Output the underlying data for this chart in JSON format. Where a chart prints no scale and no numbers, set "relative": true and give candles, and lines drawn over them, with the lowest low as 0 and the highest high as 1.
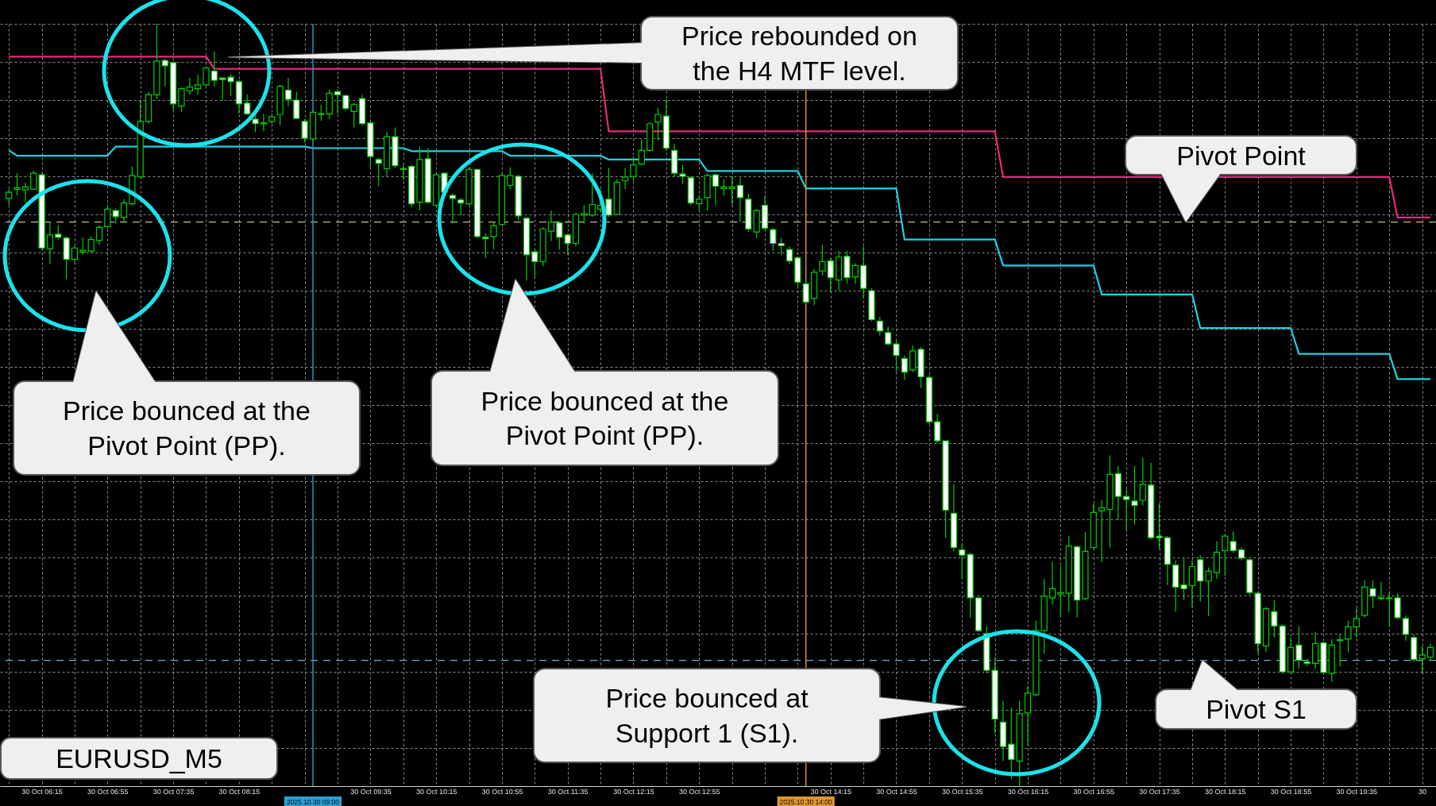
{
  "chart_data": {
    "type": "candlestick",
    "title": "EURUSD_M5",
    "relative": true,
    "grid": true,
    "xlim": [
      "2025-10-30T05:52",
      "2025-10-30T20:21"
    ],
    "xticks": [
      {
        "value": "2025-10-30T06:15",
        "label": "30 Oct 06:15"
      },
      {
        "value": "2025-10-30T06:55",
        "label": "30 Oct 06:55"
      },
      {
        "value": "2025-10-30T07:35",
        "label": "30 Oct 07:35"
      },
      {
        "value": "2025-10-30T08:15",
        "label": "30 Oct 08:15"
      },
      {
        "value": "2025-10-30T08:55",
        "label": null
      },
      {
        "value": "2025-10-30T09:35",
        "label": "30 Oct 09:35"
      },
      {
        "value": "2025-10-30T10:15",
        "label": "30 Oct 10:15"
      },
      {
        "value": "2025-10-30T10:55",
        "label": "30 Oct 10:55"
      },
      {
        "value": "2025-10-30T11:35",
        "label": "30 Oct 11:35"
      },
      {
        "value": "2025-10-30T12:15",
        "label": "30 Oct 12:15"
      },
      {
        "value": "2025-10-30T12:55",
        "label": "30 Oct 12:55"
      },
      {
        "value": "2025-10-30T13:35",
        "label": null
      },
      {
        "value": "2025-10-30T14:15",
        "label": "30 Oct 14:15"
      },
      {
        "value": "2025-10-30T14:55",
        "label": "30 Oct 14:55"
      },
      {
        "value": "2025-10-30T15:35",
        "label": "30 Oct 15:35"
      },
      {
        "value": "2025-10-30T16:15",
        "label": "30 Oct 16:15"
      },
      {
        "value": "2025-10-30T16:55",
        "label": "30 Oct 16:55"
      },
      {
        "value": "2025-10-30T17:35",
        "label": "30 Oct 17:35"
      },
      {
        "value": "2025-10-30T18:15",
        "label": "30 Oct 18:15"
      },
      {
        "value": "2025-10-30T18:55",
        "label": "30 Oct 18:55"
      },
      {
        "value": "2025-10-30T19:35",
        "label": "30 Oct 19:35"
      },
      {
        "value": "2025-10-30T20:15",
        "label": "30"
      }
    ],
    "series": [
      {
        "type": "candlestick",
        "color": "#00d000",
        "x": [
          "2025-10-30T05:55",
          "2025-10-30T06:00",
          "2025-10-30T06:05",
          "2025-10-30T06:10",
          "2025-10-30T06:15",
          "2025-10-30T06:20",
          "2025-10-30T06:25",
          "2025-10-30T06:30",
          "2025-10-30T06:35",
          "2025-10-30T06:40",
          "2025-10-30T06:45",
          "2025-10-30T06:50",
          "2025-10-30T06:55",
          "2025-10-30T07:00",
          "2025-10-30T07:05",
          "2025-10-30T07:10",
          "2025-10-30T07:15",
          "2025-10-30T07:20",
          "2025-10-30T07:25",
          "2025-10-30T07:30",
          "2025-10-30T07:35",
          "2025-10-30T07:40",
          "2025-10-30T07:45",
          "2025-10-30T07:50",
          "2025-10-30T07:55",
          "2025-10-30T08:00",
          "2025-10-30T08:05",
          "2025-10-30T08:10",
          "2025-10-30T08:15",
          "2025-10-30T08:20",
          "2025-10-30T08:25",
          "2025-10-30T08:30",
          "2025-10-30T08:35",
          "2025-10-30T08:40",
          "2025-10-30T08:45",
          "2025-10-30T08:50",
          "2025-10-30T08:55",
          "2025-10-30T09:00",
          "2025-10-30T09:05",
          "2025-10-30T09:10",
          "2025-10-30T09:15",
          "2025-10-30T09:20",
          "2025-10-30T09:25",
          "2025-10-30T09:30",
          "2025-10-30T09:35",
          "2025-10-30T09:40",
          "2025-10-30T09:45",
          "2025-10-30T09:50",
          "2025-10-30T09:55",
          "2025-10-30T10:00",
          "2025-10-30T10:05",
          "2025-10-30T10:10",
          "2025-10-30T10:15",
          "2025-10-30T10:20",
          "2025-10-30T10:25",
          "2025-10-30T10:30",
          "2025-10-30T10:35",
          "2025-10-30T10:40",
          "2025-10-30T10:45",
          "2025-10-30T10:50",
          "2025-10-30T10:55",
          "2025-10-30T11:00",
          "2025-10-30T11:05",
          "2025-10-30T11:10",
          "2025-10-30T11:15",
          "2025-10-30T11:20",
          "2025-10-30T11:25",
          "2025-10-30T11:30",
          "2025-10-30T11:35",
          "2025-10-30T11:40",
          "2025-10-30T11:45",
          "2025-10-30T11:50",
          "2025-10-30T11:55",
          "2025-10-30T12:00",
          "2025-10-30T12:05",
          "2025-10-30T12:10",
          "2025-10-30T12:15",
          "2025-10-30T12:20",
          "2025-10-30T12:25",
          "2025-10-30T12:30",
          "2025-10-30T12:35",
          "2025-10-30T12:40",
          "2025-10-30T12:45",
          "2025-10-30T12:50",
          "2025-10-30T12:55",
          "2025-10-30T13:00",
          "2025-10-30T13:05",
          "2025-10-30T13:10",
          "2025-10-30T13:15",
          "2025-10-30T13:20",
          "2025-10-30T13:25",
          "2025-10-30T13:30",
          "2025-10-30T13:35",
          "2025-10-30T13:40",
          "2025-10-30T13:45",
          "2025-10-30T13:50",
          "2025-10-30T13:55",
          "2025-10-30T14:00",
          "2025-10-30T14:05",
          "2025-10-30T14:10",
          "2025-10-30T14:15",
          "2025-10-30T14:20",
          "2025-10-30T14:25",
          "2025-10-30T14:30",
          "2025-10-30T14:35",
          "2025-10-30T14:40",
          "2025-10-30T14:45",
          "2025-10-30T14:50",
          "2025-10-30T14:55",
          "2025-10-30T15:00",
          "2025-10-30T15:05",
          "2025-10-30T15:10",
          "2025-10-30T15:15",
          "2025-10-30T15:20",
          "2025-10-30T15:25",
          "2025-10-30T15:30",
          "2025-10-30T15:35",
          "2025-10-30T15:40",
          "2025-10-30T15:45",
          "2025-10-30T15:50",
          "2025-10-30T15:55",
          "2025-10-30T16:00",
          "2025-10-30T16:05",
          "2025-10-30T16:10",
          "2025-10-30T16:15",
          "2025-10-30T16:20",
          "2025-10-30T16:25",
          "2025-10-30T16:30",
          "2025-10-30T16:35",
          "2025-10-30T16:40",
          "2025-10-30T16:45",
          "2025-10-30T16:50",
          "2025-10-30T16:55",
          "2025-10-30T17:00",
          "2025-10-30T17:05",
          "2025-10-30T17:10",
          "2025-10-30T17:15",
          "2025-10-30T17:20",
          "2025-10-30T17:25",
          "2025-10-30T17:30",
          "2025-10-30T17:35",
          "2025-10-30T17:40",
          "2025-10-30T17:45",
          "2025-10-30T17:50",
          "2025-10-30T17:55",
          "2025-10-30T18:00",
          "2025-10-30T18:05",
          "2025-10-30T18:10",
          "2025-10-30T18:15",
          "2025-10-30T18:20",
          "2025-10-30T18:25",
          "2025-10-30T18:30",
          "2025-10-30T18:35",
          "2025-10-30T18:40",
          "2025-10-30T18:45",
          "2025-10-30T18:50",
          "2025-10-30T18:55",
          "2025-10-30T19:00",
          "2025-10-30T19:05",
          "2025-10-30T19:10",
          "2025-10-30T19:15",
          "2025-10-30T19:20",
          "2025-10-30T19:25",
          "2025-10-30T19:30",
          "2025-10-30T19:35",
          "2025-10-30T19:40",
          "2025-10-30T19:45",
          "2025-10-30T19:50",
          "2025-10-30T19:55",
          "2025-10-30T20:00",
          "2025-10-30T20:05",
          "2025-10-30T20:10",
          "2025-10-30T20:15",
          "2025-10-30T20:20"
        ],
        "colors": [
          "#000000",
          "#000000",
          "#000000",
          "#000000",
          "#ffffff",
          "#000000",
          "#ffffff",
          "#ffffff",
          "#000000",
          "#000000",
          "#000000",
          "#000000",
          "#000000",
          "#ffffff",
          "#000000",
          "#000000",
          "#000000",
          "#000000",
          "#000000",
          "#ffffff",
          "#ffffff",
          "#000000",
          "#000000",
          "#000000",
          "#000000",
          "#ffffff",
          "#ffffff",
          "#ffffff",
          "#ffffff",
          "#ffffff",
          "#ffffff",
          "#ffffff",
          "#000000",
          "#000000",
          "#ffffff",
          "#ffffff",
          "#ffffff",
          "#000000",
          "#000000",
          "#000000",
          "#ffffff",
          "#ffffff",
          "#000000",
          "#ffffff",
          "#ffffff",
          "#ffffff",
          "#000000",
          "#ffffff",
          "#ffffff",
          "#ffffff",
          "#000000",
          "#ffffff",
          "#000000",
          "#ffffff",
          "#ffffff",
          "#ffffff",
          "#000000",
          "#ffffff",
          "#ffffff",
          "#000000",
          "#000000",
          "#000000",
          "#ffffff",
          "#ffffff",
          "#ffffff",
          "#000000",
          "#000000",
          "#ffffff",
          "#ffffff",
          "#000000",
          "#000000",
          "#000000",
          "#000000",
          "#ffffff",
          "#000000",
          "#000000",
          "#000000",
          "#000000",
          "#000000",
          "#000000",
          "#ffffff",
          "#ffffff",
          "#ffffff",
          "#ffffff",
          "#000000",
          "#000000",
          "#ffffff",
          "#000000",
          "#000000",
          "#ffffff",
          "#ffffff",
          "#000000",
          "#ffffff",
          "#ffffff",
          "#ffffff",
          "#ffffff",
          "#ffffff",
          "#ffffff",
          "#000000",
          "#000000",
          "#ffffff",
          "#000000",
          "#ffffff",
          "#000000",
          "#ffffff",
          "#ffffff",
          "#ffffff",
          "#ffffff",
          "#ffffff",
          "#ffffff",
          "#000000",
          "#ffffff",
          "#ffffff",
          "#ffffff",
          "#ffffff",
          "#ffffff",
          "#ffffff",
          "#ffffff",
          "#ffffff",
          "#ffffff",
          "#ffffff",
          "#ffffff",
          "#ffffff",
          "#000000",
          "#000000",
          "#000000",
          "#000000",
          "#000000",
          "#000000",
          "#000000",
          "#ffffff",
          "#000000",
          "#000000",
          "#000000",
          "#000000",
          "#ffffff",
          "#ffffff",
          "#ffffff",
          "#000000",
          "#ffffff",
          "#ffffff",
          "#ffffff",
          "#ffffff",
          "#ffffff",
          "#000000",
          "#ffffff",
          "#000000",
          "#000000",
          "#000000",
          "#ffffff",
          "#ffffff",
          "#ffffff",
          "#ffffff",
          "#000000",
          "#ffffff",
          "#ffffff",
          "#000000",
          "#ffffff",
          "#ffffff",
          "#000000",
          "#ffffff",
          "#000000",
          "#000000",
          "#000000",
          "#000000",
          "#000000",
          "#ffffff",
          "#ffffff",
          "#000000",
          "#ffffff",
          "#ffffff",
          "#ffffff",
          "#000000",
          "#000000"
        ],
        "ohlc": [
          [
            0.771,
            0.783,
            0.762,
            0.779
          ],
          [
            0.783,
            0.804,
            0.775,
            0.785
          ],
          [
            0.782,
            0.792,
            0.766,
            0.786
          ],
          [
            0.783,
            0.807,
            0.782,
            0.804
          ],
          [
            0.802,
            0.804,
            0.704,
            0.706
          ],
          [
            0.705,
            0.74,
            0.685,
            0.723
          ],
          [
            0.724,
            0.736,
            0.717,
            0.72
          ],
          [
            0.719,
            0.721,
            0.665,
            0.691
          ],
          [
            0.691,
            0.709,
            0.687,
            0.706
          ],
          [
            0.701,
            0.72,
            0.697,
            0.703
          ],
          [
            0.702,
            0.721,
            0.7,
            0.717
          ],
          [
            0.716,
            0.736,
            0.71,
            0.733
          ],
          [
            0.734,
            0.762,
            0.732,
            0.757
          ],
          [
            0.755,
            0.758,
            0.738,
            0.747
          ],
          [
            0.746,
            0.77,
            0.74,
            0.765
          ],
          [
            0.764,
            0.813,
            0.762,
            0.801
          ],
          [
            0.799,
            0.899,
            0.798,
            0.872
          ],
          [
            0.872,
            0.911,
            0.869,
            0.907
          ],
          [
            0.907,
            1.0,
            0.901,
            0.951
          ],
          [
            0.952,
            0.954,
            0.918,
            0.945
          ],
          [
            0.949,
            0.951,
            0.886,
            0.895
          ],
          [
            0.892,
            0.917,
            0.884,
            0.915
          ],
          [
            0.912,
            0.929,
            0.907,
            0.917
          ],
          [
            0.915,
            0.933,
            0.907,
            0.92
          ],
          [
            0.92,
            0.944,
            0.918,
            0.942
          ],
          [
            0.938,
            0.964,
            0.918,
            0.926
          ],
          [
            0.929,
            0.929,
            0.899,
            0.927
          ],
          [
            0.93,
            0.934,
            0.905,
            0.924
          ],
          [
            0.924,
            0.926,
            0.882,
            0.895
          ],
          [
            0.896,
            0.907,
            0.881,
            0.882
          ],
          [
            0.875,
            0.882,
            0.858,
            0.869
          ],
          [
            0.87,
            0.882,
            0.859,
            0.869
          ],
          [
            0.872,
            0.882,
            0.869,
            0.878
          ],
          [
            0.881,
            0.92,
            0.867,
            0.918
          ],
          [
            0.913,
            0.929,
            0.892,
            0.901
          ],
          [
            0.9,
            0.911,
            0.875,
            0.876
          ],
          [
            0.872,
            0.875,
            0.844,
            0.85
          ],
          [
            0.849,
            0.886,
            0.847,
            0.884
          ],
          [
            0.881,
            0.894,
            0.873,
            0.882
          ],
          [
            0.882,
            0.914,
            0.875,
            0.909
          ],
          [
            0.911,
            0.914,
            0.882,
            0.907
          ],
          [
            0.906,
            0.907,
            0.886,
            0.889
          ],
          [
            0.885,
            0.896,
            0.864,
            0.894
          ],
          [
            0.902,
            0.907,
            0.867,
            0.869
          ],
          [
            0.87,
            0.872,
            0.81,
            0.826
          ],
          [
            0.822,
            0.824,
            0.787,
            0.817
          ],
          [
            0.81,
            0.858,
            0.8,
            0.852
          ],
          [
            0.852,
            0.864,
            0.811,
            0.814
          ],
          [
            0.81,
            0.815,
            0.796,
            0.809
          ],
          [
            0.813,
            0.815,
            0.76,
            0.764
          ],
          [
            0.766,
            0.839,
            0.755,
            0.822
          ],
          [
            0.823,
            0.837,
            0.764,
            0.766
          ],
          [
            0.762,
            0.804,
            0.76,
            0.802
          ],
          [
            0.804,
            0.805,
            0.777,
            0.779
          ],
          [
            0.775,
            0.777,
            0.738,
            0.771
          ],
          [
            0.769,
            0.772,
            0.749,
            0.765
          ],
          [
            0.764,
            0.811,
            0.762,
            0.809
          ],
          [
            0.809,
            0.81,
            0.719,
            0.721
          ],
          [
            0.72,
            0.725,
            0.693,
            0.718
          ],
          [
            0.721,
            0.74,
            0.704,
            0.735
          ],
          [
            0.737,
            0.804,
            0.736,
            0.801
          ],
          [
            0.788,
            0.812,
            0.783,
            0.801
          ],
          [
            0.8,
            0.802,
            0.742,
            0.748
          ],
          [
            0.745,
            0.747,
            0.663,
            0.697
          ],
          [
            0.701,
            0.704,
            0.668,
            0.688
          ],
          [
            0.688,
            0.733,
            0.682,
            0.731
          ],
          [
            0.728,
            0.755,
            0.715,
            0.74
          ],
          [
            0.739,
            0.741,
            0.704,
            0.72
          ],
          [
            0.723,
            0.725,
            0.697,
            0.712
          ],
          [
            0.712,
            0.752,
            0.708,
            0.75
          ],
          [
            0.749,
            0.762,
            0.738,
            0.751
          ],
          [
            0.749,
            0.804,
            0.747,
            0.763
          ],
          [
            0.757,
            0.783,
            0.753,
            0.762
          ],
          [
            0.77,
            0.811,
            0.747,
            0.749
          ],
          [
            0.75,
            0.796,
            0.749,
            0.792
          ],
          [
            0.794,
            0.811,
            0.783,
            0.799
          ],
          [
            0.8,
            0.826,
            0.794,
            0.815
          ],
          [
            0.816,
            0.849,
            0.815,
            0.834
          ],
          [
            0.834,
            0.871,
            0.832,
            0.869
          ],
          [
            0.871,
            0.89,
            0.847,
            0.881
          ],
          [
            0.879,
            0.901,
            0.834,
            0.837
          ],
          [
            0.834,
            0.843,
            0.8,
            0.804
          ],
          [
            0.803,
            0.815,
            0.79,
            0.8
          ],
          [
            0.798,
            0.8,
            0.762,
            0.765
          ],
          [
            0.764,
            0.775,
            0.755,
            0.77
          ],
          [
            0.772,
            0.804,
            0.755,
            0.801
          ],
          [
            0.802,
            0.804,
            0.762,
            0.787
          ],
          [
            0.784,
            0.796,
            0.775,
            0.786
          ],
          [
            0.784,
            0.8,
            0.762,
            0.786
          ],
          [
            0.788,
            0.798,
            0.74,
            0.772
          ],
          [
            0.77,
            0.777,
            0.727,
            0.731
          ],
          [
            0.727,
            0.757,
            0.719,
            0.755
          ],
          [
            0.762,
            0.775,
            0.73,
            0.732
          ],
          [
            0.73,
            0.732,
            0.702,
            0.712
          ],
          [
            0.712,
            0.719,
            0.697,
            0.709
          ],
          [
            0.704,
            0.708,
            0.685,
            0.689
          ],
          [
            0.693,
            0.695,
            0.655,
            0.661
          ],
          [
            0.659,
            0.661,
            0.633,
            0.635
          ],
          [
            0.64,
            0.678,
            0.631,
            0.674
          ],
          [
            0.676,
            0.71,
            0.67,
            0.688
          ],
          [
            0.689,
            0.693,
            0.648,
            0.667
          ],
          [
            0.664,
            0.702,
            0.65,
            0.694
          ],
          [
            0.695,
            0.702,
            0.659,
            0.667
          ],
          [
            0.668,
            0.686,
            0.659,
            0.683
          ],
          [
            0.683,
            0.708,
            0.64,
            0.653
          ],
          [
            0.65,
            0.653,
            0.61,
            0.612
          ],
          [
            0.61,
            0.616,
            0.591,
            0.597
          ],
          [
            0.595,
            0.603,
            0.578,
            0.58
          ],
          [
            0.58,
            0.586,
            0.543,
            0.565
          ],
          [
            0.561,
            0.565,
            0.533,
            0.543
          ],
          [
            0.546,
            0.578,
            0.543,
            0.571
          ],
          [
            0.573,
            0.576,
            0.522,
            0.537
          ],
          [
            0.536,
            0.539,
            0.475,
            0.478
          ],
          [
            0.478,
            0.488,
            0.45,
            0.453
          ],
          [
            0.453,
            0.453,
            0.326,
            0.362
          ],
          [
            0.358,
            0.396,
            0.308,
            0.313
          ],
          [
            0.31,
            0.319,
            0.272,
            0.303
          ],
          [
            0.304,
            0.306,
            0.221,
            0.247
          ],
          [
            0.247,
            0.247,
            0.202,
            0.204
          ],
          [
            0.2,
            0.21,
            0.148,
            0.152
          ],
          [
            0.152,
            0.169,
            0.069,
            0.088
          ],
          [
            0.084,
            0.112,
            0.033,
            0.052
          ],
          [
            0.055,
            0.103,
            0.009,
            0.035
          ],
          [
            0.033,
            0.112,
            0.0,
            0.095
          ],
          [
            0.096,
            0.131,
            0.054,
            0.122
          ],
          [
            0.12,
            0.217,
            0.118,
            0.204
          ],
          [
            0.204,
            0.272,
            0.174,
            0.249
          ],
          [
            0.247,
            0.294,
            0.238,
            0.259
          ],
          [
            0.252,
            0.289,
            0.221,
            0.254
          ],
          [
            0.253,
            0.328,
            0.229,
            0.315
          ],
          [
            0.314,
            0.316,
            0.221,
            0.244
          ],
          [
            0.246,
            0.333,
            0.244,
            0.308
          ],
          [
            0.313,
            0.371,
            0.311,
            0.359
          ],
          [
            0.361,
            0.375,
            0.294,
            0.365
          ],
          [
            0.363,
            0.434,
            0.313,
            0.409
          ],
          [
            0.41,
            0.42,
            0.349,
            0.38
          ],
          [
            0.38,
            0.39,
            0.336,
            0.376
          ],
          [
            0.374,
            0.42,
            0.343,
            0.368
          ],
          [
            0.375,
            0.431,
            0.368,
            0.396
          ],
          [
            0.395,
            0.424,
            0.324,
            0.326
          ],
          [
            0.328,
            0.371,
            0.311,
            0.326
          ],
          [
            0.326,
            0.328,
            0.264,
            0.291
          ],
          [
            0.29,
            0.296,
            0.229,
            0.261
          ],
          [
            0.264,
            0.3,
            0.244,
            0.259
          ],
          [
            0.263,
            0.296,
            0.234,
            0.288
          ],
          [
            0.297,
            0.303,
            0.242,
            0.269
          ],
          [
            0.269,
            0.287,
            0.223,
            0.282
          ],
          [
            0.28,
            0.321,
            0.272,
            0.307
          ],
          [
            0.309,
            0.331,
            0.276,
            0.328
          ],
          [
            0.321,
            0.334,
            0.306,
            0.309
          ],
          [
            0.31,
            0.313,
            0.296,
            0.299
          ],
          [
            0.297,
            0.298,
            0.251,
            0.254
          ],
          [
            0.253,
            0.255,
            0.174,
            0.187
          ],
          [
            0.184,
            0.235,
            0.176,
            0.233
          ],
          [
            0.229,
            0.244,
            0.195,
            0.21
          ],
          [
            0.21,
            0.212,
            0.148,
            0.15
          ],
          [
            0.15,
            0.195,
            0.148,
            0.182
          ],
          [
            0.185,
            0.21,
            0.154,
            0.165
          ],
          [
            0.163,
            0.167,
            0.157,
            0.161
          ],
          [
            0.161,
            0.202,
            0.154,
            0.187
          ],
          [
            0.188,
            0.189,
            0.148,
            0.149
          ],
          [
            0.148,
            0.193,
            0.137,
            0.185
          ],
          [
            0.191,
            0.199,
            0.157,
            0.192
          ],
          [
            0.193,
            0.217,
            0.176,
            0.209
          ],
          [
            0.209,
            0.234,
            0.195,
            0.22
          ],
          [
            0.224,
            0.27,
            0.221,
            0.261
          ],
          [
            0.259,
            0.27,
            0.234,
            0.249
          ],
          [
            0.247,
            0.268,
            0.244,
            0.246
          ],
          [
            0.246,
            0.255,
            0.21,
            0.247
          ],
          [
            0.247,
            0.253,
            0.219,
            0.221
          ],
          [
            0.22,
            0.224,
            0.191,
            0.199
          ],
          [
            0.195,
            0.199,
            0.163,
            0.166
          ],
          [
            0.167,
            0.184,
            0.148,
            0.172
          ],
          [
            0.169,
            0.187,
            0.165,
            0.182
          ]
        ]
      },
      {
        "type": "line",
        "color": "#e8287e",
        "x": [
          "2025-10-30T05:55",
          "2025-10-30T07:55",
          "2025-10-30T08:00",
          "2025-10-30T11:55",
          "2025-10-30T12:00",
          "2025-10-30T15:55",
          "2025-10-30T16:00",
          "2025-10-30T19:55",
          "2025-10-30T20:00",
          "2025-10-30T20:20"
        ],
        "values": [
          0.957,
          0.957,
          0.941,
          0.941,
          0.859,
          0.859,
          0.799,
          0.799,
          0.746,
          0.746
        ]
      },
      {
        "type": "line",
        "color": "#1ad4e4",
        "x": [
          "2025-10-30T05:55",
          "2025-10-30T06:00",
          "2025-10-30T06:55",
          "2025-10-30T07:00",
          "2025-10-30T08:55",
          "2025-10-30T09:00",
          "2025-10-30T09:55",
          "2025-10-30T10:00",
          "2025-10-30T10:55",
          "2025-10-30T11:00",
          "2025-10-30T11:55",
          "2025-10-30T12:00",
          "2025-10-30T12:55",
          "2025-10-30T13:00",
          "2025-10-30T13:55",
          "2025-10-30T14:00",
          "2025-10-30T14:55",
          "2025-10-30T15:00",
          "2025-10-30T15:55",
          "2025-10-30T16:00",
          "2025-10-30T16:55",
          "2025-10-30T17:00",
          "2025-10-30T17:55",
          "2025-10-30T18:00",
          "2025-10-30T18:55",
          "2025-10-30T19:00",
          "2025-10-30T19:55",
          "2025-10-30T20:00",
          "2025-10-30T20:20"
        ],
        "values": [
          0.834,
          0.827,
          0.827,
          0.839,
          0.839,
          0.837,
          0.837,
          0.833,
          0.833,
          0.827,
          0.827,
          0.822,
          0.822,
          0.807,
          0.807,
          0.784,
          0.784,
          0.717,
          0.717,
          0.683,
          0.683,
          0.645,
          0.645,
          0.601,
          0.601,
          0.567,
          0.567,
          0.534,
          0.534
        ]
      }
    ],
    "ref_lines": [
      {
        "axis": "y",
        "value": 0.74,
        "label": "Pivot Point",
        "color": "#c8b98c",
        "line_style": "dashed"
      },
      {
        "axis": "y",
        "value": 0.165,
        "label": "Pivot S1",
        "color": "#7aaac8",
        "line_style": "dashed"
      },
      {
        "axis": "x",
        "value": "2025-10-30T09:00",
        "label": "2025.10.30 09:00",
        "color": "#2a9fd8",
        "line_style": "solid"
      },
      {
        "axis": "x",
        "value": "2025-10-30T14:00",
        "label": "2025.10.30 14:00",
        "color": "#e0962e",
        "line_style": "solid"
      }
    ],
    "annotations": [
      "Price rebounded on\nthe H4 MTF level.",
      "Price bounced at the\nPivot Point (PP).",
      "Price bounced at the\nPivot Point (PP).",
      "Price bounced at\nSupport 1 (S1)."
    ]
  }
}
